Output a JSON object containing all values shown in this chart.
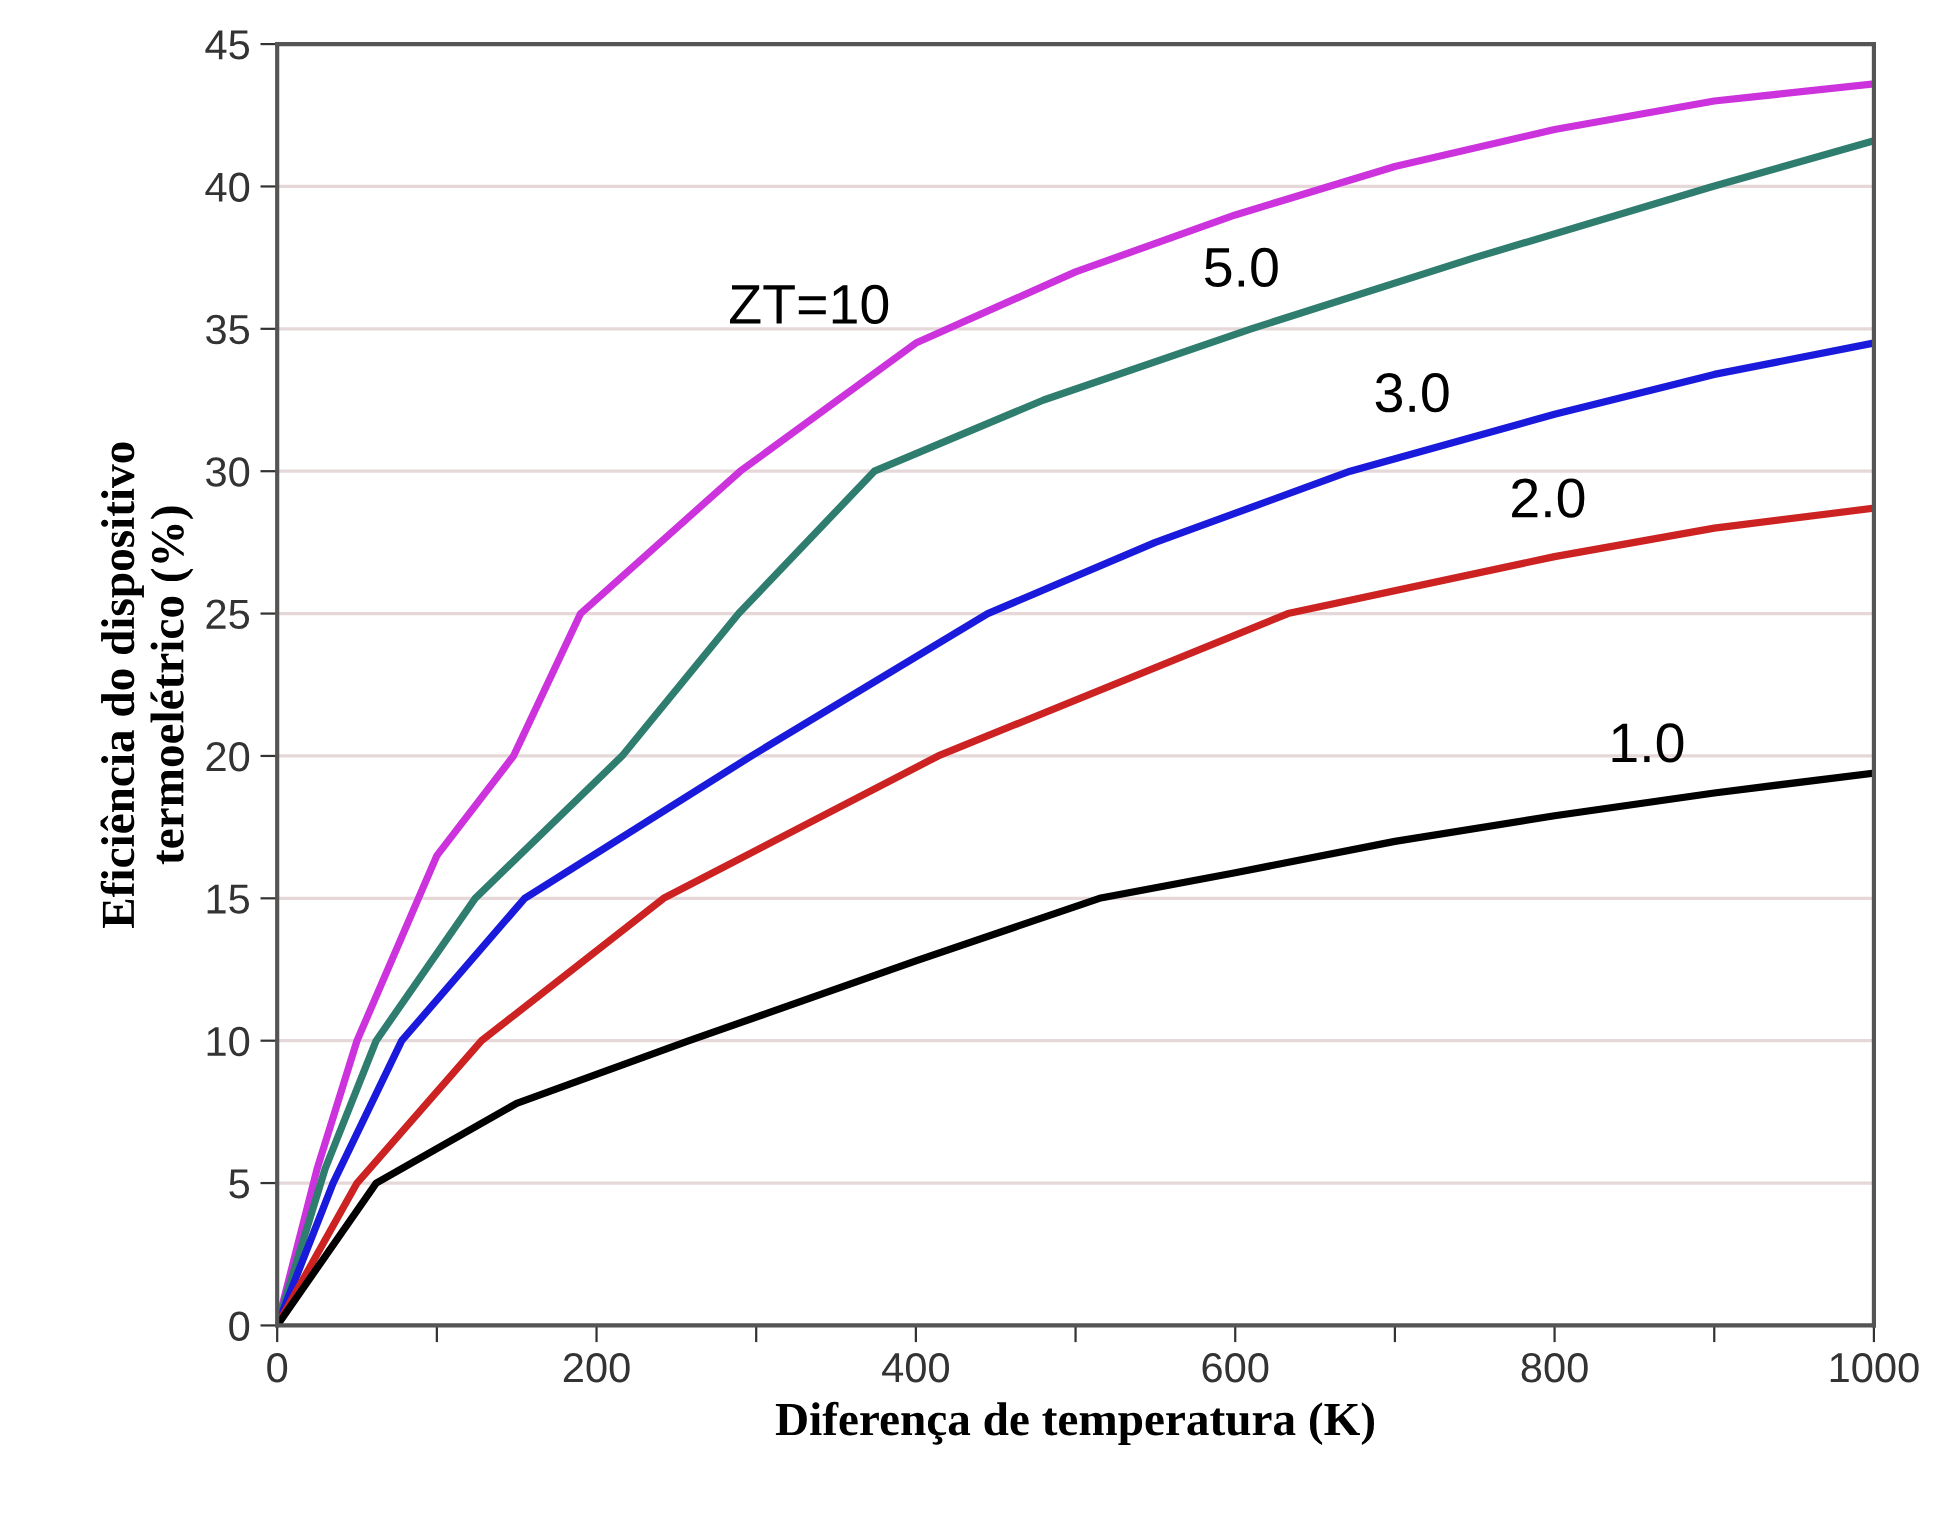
{
  "chart_data": {
    "type": "line",
    "xlabel": "Diferença de temperatura (K)",
    "ylabel": "Eficiência do dispositivo\ntermoelétrico (%)",
    "series": [
      {
        "color": "#cc33dd",
        "x": [
          0,
          25,
          50,
          100,
          148,
          190,
          290,
          400,
          500,
          600,
          700,
          800,
          900,
          1000
        ],
        "values": [
          0,
          5.5,
          10,
          16.5,
          20,
          25,
          30,
          34.5,
          37,
          39,
          40.7,
          42,
          43,
          43.6
        ]
      },
      {
        "color": "#2e7d6e",
        "x": [
          0,
          30,
          62,
          124,
          216,
          289,
          374,
          480,
          610,
          750,
          899,
          1000
        ],
        "values": [
          0,
          5.5,
          10,
          15,
          20,
          25,
          30,
          32.5,
          35,
          37.5,
          40,
          41.6
        ]
      },
      {
        "color": "#1a1adc",
        "x": [
          0,
          35,
          78,
          155,
          297,
          445,
          550,
          672,
          800,
          900,
          1000
        ],
        "values": [
          0,
          5,
          10,
          15,
          20,
          25,
          27.5,
          30,
          32,
          33.4,
          34.5
        ]
      },
      {
        "color": "#cc2222",
        "x": [
          0,
          50,
          128,
          242,
          414,
          633,
          800,
          900,
          1000
        ],
        "values": [
          0,
          5,
          10,
          15,
          20,
          25,
          27,
          28,
          28.7
        ]
      },
      {
        "color": "#000000",
        "x": [
          0,
          62,
          150,
          258,
          400,
          515,
          600,
          700,
          800,
          900,
          1000
        ],
        "values": [
          0,
          5,
          7.8,
          10,
          12.8,
          15,
          15.9,
          17,
          17.9,
          18.7,
          19.4
        ]
      }
    ],
    "annotations": [
      {
        "text": "ZT=10",
        "x": 384,
        "y": 34.0
      },
      {
        "text": "5.0",
        "x": 628,
        "y": 35.3
      },
      {
        "text": "3.0",
        "x": 735,
        "y": 30.9
      },
      {
        "text": "2.0",
        "x": 820,
        "y": 27.2
      },
      {
        "text": "1.0",
        "x": 882,
        "y": 18.6
      }
    ],
    "xlim": [
      0,
      1000
    ],
    "ylim": [
      0,
      45
    ],
    "xticks": [
      0,
      {
        "value": 100,
        "label": null
      },
      200,
      {
        "value": 300,
        "label": null
      },
      400,
      {
        "value": 500,
        "label": null
      },
      600,
      {
        "value": 700,
        "label": null
      },
      800,
      {
        "value": 900,
        "label": null
      },
      1000
    ],
    "yticks": [
      0,
      5,
      10,
      15,
      20,
      25,
      30,
      35,
      40,
      45
    ],
    "grid": "y",
    "legend": false,
    "marker": "none",
    "line_style": "solid"
  }
}
